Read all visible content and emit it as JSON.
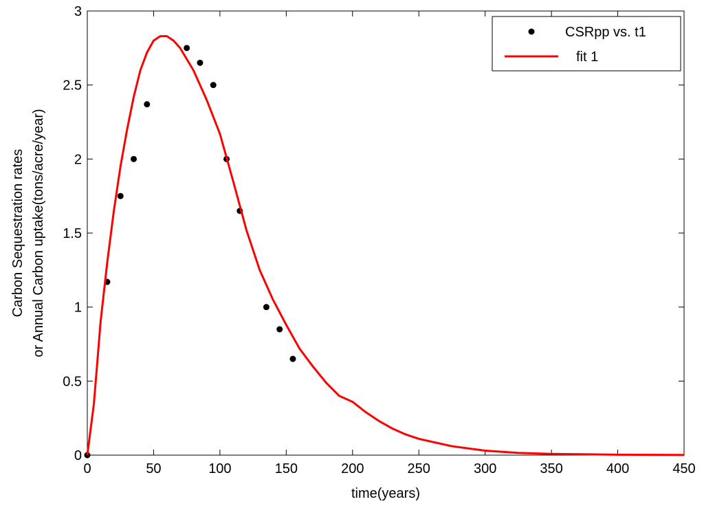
{
  "chart_data": {
    "type": "scatter",
    "xlabel": "time(years)",
    "ylabel": [
      "Carbon Sequestration rates",
      "or Annual Carbon uptake(tons/acre/year)"
    ],
    "xlim": [
      0,
      450
    ],
    "xticks": [
      0,
      50,
      100,
      150,
      200,
      250,
      300,
      350,
      400,
      450
    ],
    "ylim": [
      0,
      3
    ],
    "yticks": [
      0,
      0.5,
      1,
      1.5,
      2,
      2.5,
      3
    ],
    "legend": "upper right",
    "series": [
      {
        "name": "CSRpp vs. t1",
        "color": "#000000",
        "mode": "markers",
        "x": [
          0,
          15,
          25,
          35,
          45,
          75,
          85,
          95,
          105,
          115,
          135,
          145,
          155
        ],
        "values": [
          0,
          1.17,
          1.75,
          2.0,
          2.37,
          2.75,
          2.65,
          2.5,
          2.0,
          1.65,
          1.0,
          0.85,
          0.65
        ]
      },
      {
        "name": "fit 1",
        "color": "#ff0000",
        "mode": "line",
        "x": [
          0,
          5,
          10,
          15,
          20,
          25,
          30,
          35,
          40,
          45,
          50,
          55,
          60,
          65,
          70,
          80,
          90,
          100,
          110,
          120,
          130,
          140,
          150,
          160,
          170,
          180,
          190,
          200,
          210,
          220,
          230,
          240,
          250,
          275,
          300,
          325,
          350,
          400,
          450
        ],
        "values": [
          0,
          0.35,
          0.9,
          1.3,
          1.65,
          1.95,
          2.2,
          2.42,
          2.6,
          2.72,
          2.8,
          2.83,
          2.83,
          2.8,
          2.75,
          2.6,
          2.4,
          2.17,
          1.85,
          1.52,
          1.25,
          1.05,
          0.88,
          0.72,
          0.6,
          0.49,
          0.4,
          0.36,
          0.29,
          0.23,
          0.18,
          0.14,
          0.11,
          0.06,
          0.03,
          0.015,
          0.008,
          0.003,
          0.001
        ]
      }
    ]
  }
}
